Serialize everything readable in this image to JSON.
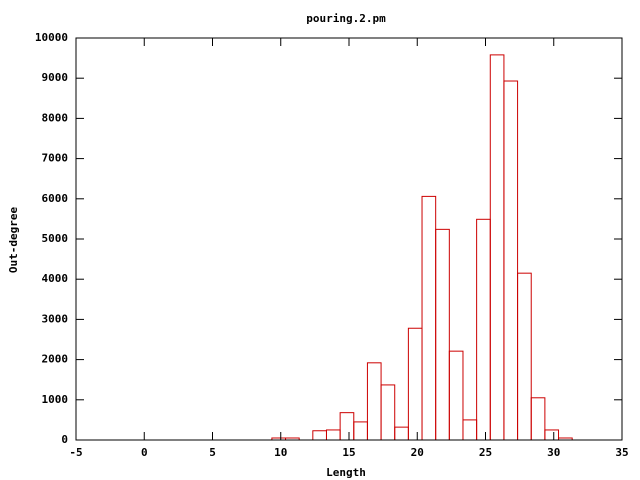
{
  "chart_data": {
    "type": "histogram",
    "title": "pouring.2.pm",
    "x_label": "Length",
    "y_label": "Out-degree",
    "bins": [
      9.35,
      10.35,
      11.35,
      12.35,
      13.35,
      14.35,
      15.35,
      16.35,
      17.35,
      18.35,
      19.35,
      20.35,
      21.35,
      22.35,
      23.35,
      24.35,
      25.35,
      26.35,
      27.35,
      28.35,
      29.35,
      30.35,
      31.35
    ],
    "values": [
      50,
      50,
      0,
      230,
      250,
      680,
      450,
      1920,
      1370,
      320,
      2780,
      6060,
      5240,
      2210,
      500,
      5490,
      9580,
      8930,
      4150,
      1050,
      250,
      50
    ],
    "color": "#cc0000",
    "xlim": [
      -5,
      35
    ],
    "xticks": [
      -5,
      0,
      5,
      10,
      15,
      20,
      25,
      30,
      35
    ],
    "ylim": [
      0,
      10000
    ],
    "yticks": [
      0,
      1000,
      2000,
      3000,
      4000,
      5000,
      6000,
      7000,
      8000,
      9000,
      10000
    ]
  }
}
